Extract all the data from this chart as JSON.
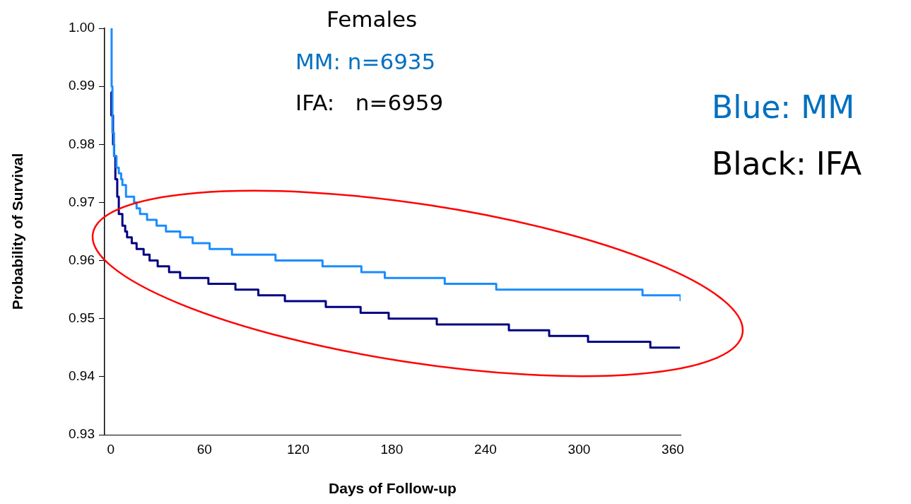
{
  "chart_data": {
    "type": "step",
    "title": "Females",
    "subtitle": "MM: n=6935",
    "xlabel": "Days of Follow-up",
    "ylabel": "Probability of Survival",
    "annotations": [
      "IFA:   n=6959",
      "Blue: MM",
      "Black: IFA"
    ],
    "xlim": [
      -4,
      365
    ],
    "xticks": [
      0,
      60,
      120,
      180,
      240,
      300,
      360
    ],
    "ylim": [
      0.93,
      1.0
    ],
    "yticks": [
      0.93,
      0.94,
      0.95,
      0.96,
      0.97,
      0.98,
      0.99,
      {
        "value": 1.0,
        "label": "1.00"
      }
    ],
    "grid": false,
    "legend": false,
    "series": [
      {
        "color": "#1a8cff",
        "x": [
          0,
          0.5,
          1,
          2,
          3.6,
          5.1,
          6.6,
          7.4,
          9.7,
          14.9,
          16.5,
          18.7,
          23.2,
          29.3,
          35.3,
          44.4,
          52.4,
          63.3,
          77.6,
          105.5,
          135.6,
          160.5,
          175.5,
          213.9,
          246.9,
          340.6,
          365
        ],
        "values": [
          1.0,
          0.99,
          0.982,
          0.978,
          0.976,
          0.975,
          0.974,
          0.973,
          0.971,
          0.97,
          0.969,
          0.968,
          0.967,
          0.966,
          0.965,
          0.964,
          0.963,
          0.962,
          0.961,
          0.96,
          0.959,
          0.958,
          0.957,
          0.956,
          0.955,
          0.954,
          0.953
        ]
      },
      {
        "color": "#000080",
        "x": [
          0,
          0.3,
          1.4,
          2.1,
          2.9,
          4.1,
          5.1,
          7.4,
          9.2,
          10.4,
          13.4,
          16.5,
          21,
          24.8,
          30,
          37.3,
          44.4,
          62.5,
          79.8,
          94.5,
          111.5,
          137.7,
          160,
          178,
          208.8,
          255,
          280.8,
          305.7,
          345.6,
          364.6
        ],
        "values": [
          0.989,
          0.985,
          0.98,
          0.978,
          0.974,
          0.971,
          0.968,
          0.966,
          0.965,
          0.964,
          0.963,
          0.962,
          0.961,
          0.96,
          0.959,
          0.958,
          0.957,
          0.956,
          0.955,
          0.954,
          0.953,
          0.952,
          0.951,
          0.95,
          0.949,
          0.948,
          0.947,
          0.946,
          0.945,
          0.945
        ]
      }
    ]
  }
}
